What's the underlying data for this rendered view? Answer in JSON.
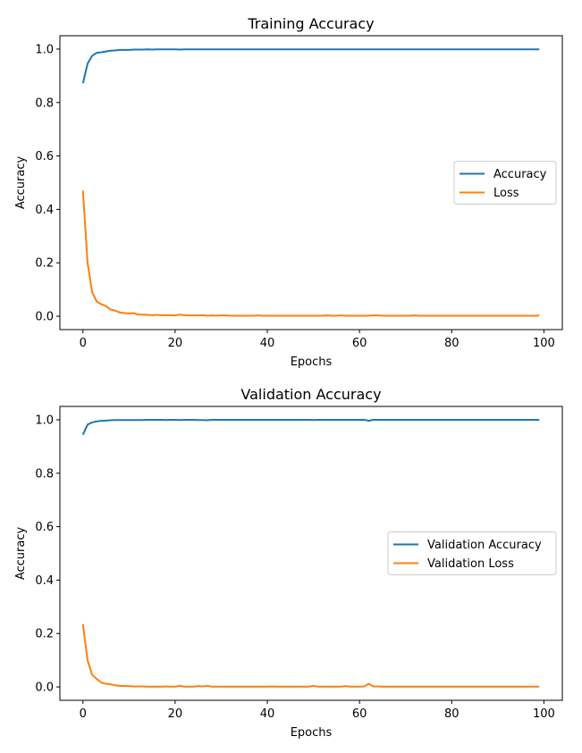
{
  "chart_data": [
    {
      "type": "line",
      "title": "Training Accuracy",
      "xlabel": "Epochs",
      "ylabel": "Accuracy",
      "xlim": [
        -5,
        104
      ],
      "ylim": [
        -0.05,
        1.05
      ],
      "xticks": [
        0,
        20,
        40,
        60,
        80,
        100
      ],
      "yticks": [
        0.0,
        0.2,
        0.4,
        0.6,
        0.8,
        1.0
      ],
      "xtick_labels": [
        "0",
        "20",
        "40",
        "60",
        "80",
        "100"
      ],
      "ytick_labels": [
        "0.0",
        "0.2",
        "0.4",
        "0.6",
        "0.8",
        "1.0"
      ],
      "legend_position": "center-right",
      "grid": false,
      "series": [
        {
          "name": "Accuracy",
          "color": "#1f77b4",
          "x": [
            0,
            1,
            2,
            3,
            4,
            5,
            6,
            7,
            8,
            9,
            10,
            11,
            12,
            13,
            14,
            15,
            16,
            17,
            18,
            19,
            20,
            21,
            22,
            23,
            24,
            25,
            26,
            27,
            28,
            29,
            30,
            31,
            32,
            33,
            34,
            35,
            36,
            37,
            38,
            39,
            40,
            41,
            42,
            43,
            44,
            45,
            46,
            47,
            48,
            49,
            50,
            51,
            52,
            53,
            54,
            55,
            56,
            57,
            58,
            59,
            60,
            61,
            62,
            63,
            64,
            65,
            66,
            67,
            68,
            69,
            70,
            71,
            72,
            73,
            74,
            75,
            76,
            77,
            78,
            79,
            80,
            81,
            82,
            83,
            84,
            85,
            86,
            87,
            88,
            89,
            90,
            91,
            92,
            93,
            94,
            95,
            96,
            97,
            98,
            99
          ],
          "values": [
            0.872,
            0.945,
            0.975,
            0.986,
            0.988,
            0.991,
            0.994,
            0.995,
            0.997,
            0.997,
            0.997,
            0.998,
            0.998,
            0.998,
            0.999,
            0.998,
            0.999,
            0.999,
            0.999,
            0.999,
            0.999,
            0.998,
            0.999,
            0.999,
            0.999,
            0.999,
            0.999,
            0.999,
            0.999,
            0.999,
            0.999,
            0.999,
            0.999,
            0.999,
            0.999,
            0.999,
            0.999,
            0.999,
            0.999,
            0.999,
            0.999,
            0.999,
            0.999,
            0.999,
            0.999,
            0.999,
            0.999,
            0.999,
            0.999,
            0.999,
            0.999,
            0.999,
            0.999,
            0.999,
            0.999,
            0.999,
            0.999,
            0.999,
            0.999,
            0.999,
            0.999,
            0.999,
            0.999,
            0.999,
            0.999,
            0.999,
            0.999,
            0.999,
            0.999,
            0.999,
            0.999,
            0.999,
            0.999,
            0.999,
            0.999,
            0.999,
            0.999,
            0.999,
            0.999,
            0.999,
            0.999,
            0.999,
            0.999,
            0.999,
            0.999,
            0.999,
            0.999,
            0.999,
            0.999,
            0.999,
            0.999,
            0.999,
            0.999,
            0.999,
            0.999,
            0.999,
            0.999,
            0.999,
            0.999,
            0.999
          ]
        },
        {
          "name": "Loss",
          "color": "#ff7f0e",
          "x": [
            0,
            1,
            2,
            3,
            4,
            5,
            6,
            7,
            8,
            9,
            10,
            11,
            12,
            13,
            14,
            15,
            16,
            17,
            18,
            19,
            20,
            21,
            22,
            23,
            24,
            25,
            26,
            27,
            28,
            29,
            30,
            31,
            32,
            33,
            34,
            35,
            36,
            37,
            38,
            39,
            40,
            41,
            42,
            43,
            44,
            45,
            46,
            47,
            48,
            49,
            50,
            51,
            52,
            53,
            54,
            55,
            56,
            57,
            58,
            59,
            60,
            61,
            62,
            63,
            64,
            65,
            66,
            67,
            68,
            69,
            70,
            71,
            72,
            73,
            74,
            75,
            76,
            77,
            78,
            79,
            80,
            81,
            82,
            83,
            84,
            85,
            86,
            87,
            88,
            89,
            90,
            91,
            92,
            93,
            94,
            95,
            96,
            97,
            98,
            99
          ],
          "values": [
            0.47,
            0.2,
            0.09,
            0.055,
            0.045,
            0.038,
            0.025,
            0.021,
            0.014,
            0.012,
            0.01,
            0.012,
            0.006,
            0.006,
            0.005,
            0.004,
            0.005,
            0.004,
            0.004,
            0.004,
            0.003,
            0.006,
            0.004,
            0.003,
            0.003,
            0.003,
            0.004,
            0.002,
            0.003,
            0.002,
            0.003,
            0.003,
            0.002,
            0.002,
            0.002,
            0.002,
            0.002,
            0.002,
            0.003,
            0.002,
            0.002,
            0.002,
            0.002,
            0.002,
            0.002,
            0.002,
            0.002,
            0.002,
            0.002,
            0.002,
            0.002,
            0.002,
            0.002,
            0.003,
            0.002,
            0.002,
            0.003,
            0.002,
            0.002,
            0.002,
            0.002,
            0.002,
            0.002,
            0.003,
            0.003,
            0.002,
            0.002,
            0.002,
            0.002,
            0.002,
            0.002,
            0.002,
            0.003,
            0.002,
            0.002,
            0.002,
            0.002,
            0.002,
            0.002,
            0.002,
            0.002,
            0.002,
            0.002,
            0.002,
            0.002,
            0.002,
            0.002,
            0.002,
            0.002,
            0.002,
            0.002,
            0.002,
            0.002,
            0.002,
            0.002,
            0.002,
            0.002,
            0.002,
            0.002,
            0.003
          ]
        }
      ]
    },
    {
      "type": "line",
      "title": "Validation Accuracy",
      "xlabel": "Epochs",
      "ylabel": "Accuracy",
      "xlim": [
        -5,
        104
      ],
      "ylim": [
        -0.05,
        1.05
      ],
      "xticks": [
        0,
        20,
        40,
        60,
        80,
        100
      ],
      "yticks": [
        0.0,
        0.2,
        0.4,
        0.6,
        0.8,
        1.0
      ],
      "xtick_labels": [
        "0",
        "20",
        "40",
        "60",
        "80",
        "100"
      ],
      "ytick_labels": [
        "0.0",
        "0.2",
        "0.4",
        "0.6",
        "0.8",
        "1.0"
      ],
      "legend_position": "center-right",
      "grid": false,
      "series": [
        {
          "name": "Validation Accuracy",
          "color": "#1f77b4",
          "x": [
            0,
            1,
            2,
            3,
            4,
            5,
            6,
            7,
            8,
            9,
            10,
            11,
            12,
            13,
            14,
            15,
            16,
            17,
            18,
            19,
            20,
            21,
            22,
            23,
            24,
            25,
            26,
            27,
            28,
            29,
            30,
            31,
            32,
            33,
            34,
            35,
            36,
            37,
            38,
            39,
            40,
            41,
            42,
            43,
            44,
            45,
            46,
            47,
            48,
            49,
            50,
            51,
            52,
            53,
            54,
            55,
            56,
            57,
            58,
            59,
            60,
            61,
            62,
            63,
            64,
            65,
            66,
            67,
            68,
            69,
            70,
            71,
            72,
            73,
            74,
            75,
            76,
            77,
            78,
            79,
            80,
            81,
            82,
            83,
            84,
            85,
            86,
            87,
            88,
            89,
            90,
            91,
            92,
            93,
            94,
            95,
            96,
            97,
            98,
            99
          ],
          "values": [
            0.944,
            0.982,
            0.99,
            0.994,
            0.996,
            0.997,
            0.998,
            0.999,
            0.999,
            0.999,
            0.999,
            0.999,
            0.999,
            0.999,
            1.0,
            1.0,
            1.0,
            1.0,
            0.999,
            1.0,
            1.0,
            0.999,
            1.0,
            1.0,
            1.0,
            0.999,
            0.999,
            0.998,
            1.0,
            1.0,
            1.0,
            1.0,
            1.0,
            1.0,
            1.0,
            1.0,
            1.0,
            1.0,
            1.0,
            1.0,
            1.0,
            1.0,
            1.0,
            1.0,
            1.0,
            1.0,
            1.0,
            1.0,
            1.0,
            1.0,
            0.999,
            1.0,
            1.0,
            1.0,
            1.0,
            1.0,
            1.0,
            1.0,
            1.0,
            1.0,
            1.0,
            1.0,
            0.996,
            1.0,
            1.0,
            1.0,
            1.0,
            1.0,
            1.0,
            1.0,
            1.0,
            1.0,
            1.0,
            1.0,
            1.0,
            1.0,
            1.0,
            1.0,
            1.0,
            1.0,
            1.0,
            1.0,
            1.0,
            1.0,
            1.0,
            1.0,
            1.0,
            1.0,
            1.0,
            1.0,
            1.0,
            1.0,
            1.0,
            1.0,
            1.0,
            1.0,
            1.0,
            1.0,
            1.0,
            1.0
          ]
        },
        {
          "name": "Validation Loss",
          "color": "#ff7f0e",
          "x": [
            0,
            1,
            2,
            3,
            4,
            5,
            6,
            7,
            8,
            9,
            10,
            11,
            12,
            13,
            14,
            15,
            16,
            17,
            18,
            19,
            20,
            21,
            22,
            23,
            24,
            25,
            26,
            27,
            28,
            29,
            30,
            31,
            32,
            33,
            34,
            35,
            36,
            37,
            38,
            39,
            40,
            41,
            42,
            43,
            44,
            45,
            46,
            47,
            48,
            49,
            50,
            51,
            52,
            53,
            54,
            55,
            56,
            57,
            58,
            59,
            60,
            61,
            62,
            63,
            64,
            65,
            66,
            67,
            68,
            69,
            70,
            71,
            72,
            73,
            74,
            75,
            76,
            77,
            78,
            79,
            80,
            81,
            82,
            83,
            84,
            85,
            86,
            87,
            88,
            89,
            90,
            91,
            92,
            93,
            94,
            95,
            96,
            97,
            98,
            99
          ],
          "values": [
            0.235,
            0.1,
            0.045,
            0.03,
            0.016,
            0.012,
            0.01,
            0.006,
            0.004,
            0.003,
            0.003,
            0.002,
            0.002,
            0.002,
            0.001,
            0.001,
            0.001,
            0.001,
            0.002,
            0.001,
            0.001,
            0.004,
            0.001,
            0.001,
            0.001,
            0.003,
            0.002,
            0.004,
            0.001,
            0.001,
            0.001,
            0.001,
            0.001,
            0.001,
            0.001,
            0.001,
            0.001,
            0.001,
            0.001,
            0.001,
            0.001,
            0.002,
            0.001,
            0.001,
            0.001,
            0.001,
            0.001,
            0.001,
            0.001,
            0.001,
            0.004,
            0.001,
            0.001,
            0.001,
            0.001,
            0.001,
            0.001,
            0.003,
            0.001,
            0.001,
            0.001,
            0.002,
            0.012,
            0.002,
            0.002,
            0.001,
            0.001,
            0.001,
            0.001,
            0.001,
            0.001,
            0.001,
            0.001,
            0.001,
            0.001,
            0.001,
            0.001,
            0.001,
            0.001,
            0.001,
            0.001,
            0.001,
            0.001,
            0.001,
            0.001,
            0.001,
            0.001,
            0.001,
            0.001,
            0.001,
            0.001,
            0.001,
            0.001,
            0.001,
            0.001,
            0.001,
            0.001,
            0.001,
            0.001,
            0.001
          ]
        }
      ]
    }
  ]
}
